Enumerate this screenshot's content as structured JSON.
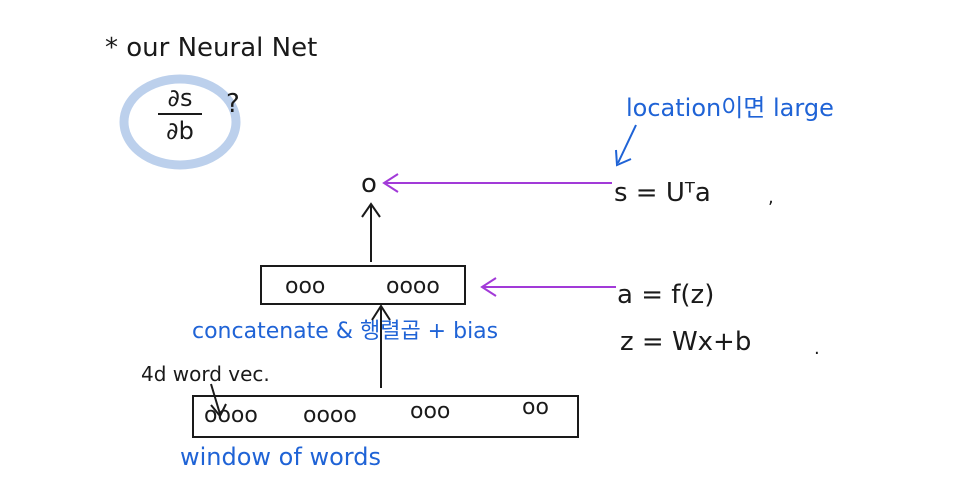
{
  "title": "* our Neural Net",
  "question": {
    "numerator": "∂s",
    "denominator": "∂b",
    "mark": "?"
  },
  "output_node": "o",
  "score_eq": "s = Uᵀa",
  "score_note": "location이면 large",
  "hidden_layer": {
    "units": [
      "ooo",
      "oooo"
    ]
  },
  "hidden_note": "concatenate & 행렬곱 + bias",
  "activation_eq": "a = f(z)",
  "linear_eq": "z = Wx+b",
  "input_layer": {
    "groups": [
      "oooo",
      "oooo",
      "ooo",
      "oo"
    ]
  },
  "input_note": "4d word vec.",
  "input_label": "window of words",
  "colors": {
    "ink": "#1a1a1a",
    "blue": "#1f63d6",
    "purple": "#a23ad8",
    "highlight": "#bcd0ec"
  }
}
